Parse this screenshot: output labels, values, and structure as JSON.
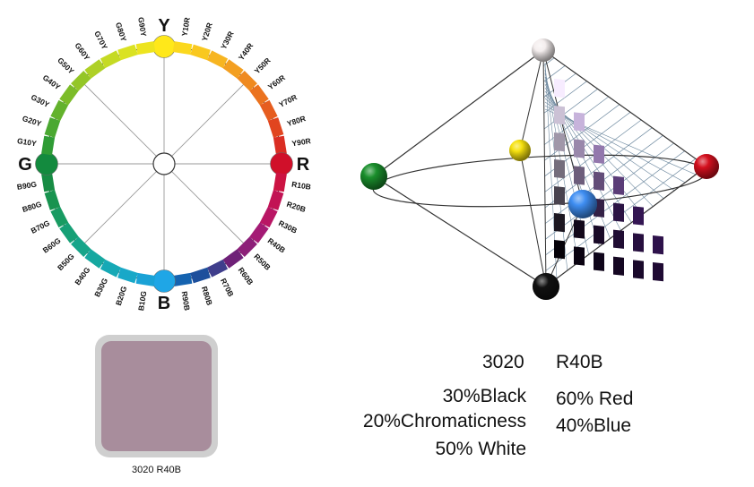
{
  "hue_circle": {
    "primaries": [
      "Y",
      "R",
      "B",
      "G"
    ],
    "hues": [
      "Y10R",
      "Y20R",
      "Y30R",
      "Y40R",
      "Y50R",
      "Y60R",
      "Y70R",
      "Y80R",
      "Y90R",
      "R10B",
      "R20B",
      "R30B",
      "R40B",
      "R50B",
      "R60B",
      "R70B",
      "R80B",
      "R90B",
      "B10G",
      "B20G",
      "B30G",
      "B40G",
      "B50G",
      "B60G",
      "B70G",
      "B80G",
      "B90G",
      "G10Y",
      "G20Y",
      "G30Y",
      "G40Y",
      "G50Y",
      "G60Y",
      "G70Y",
      "G80Y",
      "G90Y"
    ],
    "colors": {
      "Y": "#ffe81a",
      "R": "#d0102a",
      "B": "#1fa6e6",
      "G": "#138a3e",
      "Y10R": "#fbd81e",
      "Y20R": "#f9c81f",
      "Y30R": "#f7b521",
      "Y40R": "#f39f21",
      "Y50R": "#ef8a20",
      "Y60R": "#eb731f",
      "Y70R": "#e65d1f",
      "Y80R": "#e1451f",
      "Y90R": "#da2e23",
      "R10B": "#cc1342",
      "R20B": "#c21354",
      "R30B": "#b91664",
      "R40B": "#a41b75",
      "R50B": "#8c1f78",
      "R60B": "#6f2178",
      "R70B": "#3f3e8c",
      "R80B": "#1d4f9c",
      "R90B": "#1563b0",
      "B10G": "#1aa2d6",
      "B20G": "#18a8c8",
      "B30G": "#16a9b6",
      "B40G": "#16a8a0",
      "B50G": "#16a58a",
      "B60G": "#16a076",
      "B70G": "#189b62",
      "B80G": "#18934f",
      "B90G": "#178c44",
      "G10Y": "#2f9c35",
      "G20Y": "#4aa831",
      "G30Y": "#63b22c",
      "G40Y": "#7cbc29",
      "G50Y": "#94c627",
      "G60Y": "#aed026",
      "G70Y": "#c5da24",
      "G80Y": "#dae222",
      "G90Y": "#ede41f"
    }
  },
  "color_solid": {
    "poles": {
      "white": "#f4eeee",
      "black": "#111111",
      "yellow": "#f6e10f",
      "red": "#d4101e",
      "green": "#1a8f2c",
      "blue": "#3f8ef2"
    }
  },
  "sample": {
    "swatch_color": "#a88d9c",
    "caption": "3020 R40B"
  },
  "notation": {
    "nuance_code": "3020",
    "hue_code": "R40B",
    "black": "30%Black",
    "chromaticness": "20%Chromaticness",
    "white": "50% White",
    "red": "60% Red",
    "blue": "40%Blue"
  }
}
